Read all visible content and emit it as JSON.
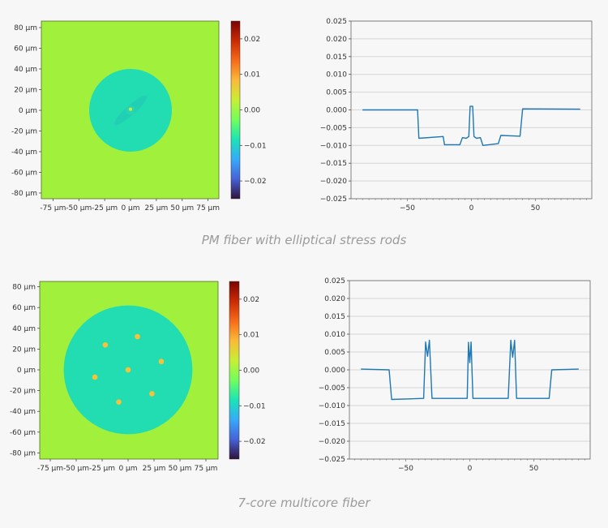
{
  "captions": [
    "PM fiber with elliptical stress rods",
    "7-core multicore fiber"
  ],
  "colors": {
    "page_bg": "#f7f7f7",
    "line": "#1f77b4",
    "background_value": "#a0f03c",
    "cladding": "#22dcb2",
    "core": "#f5c23c",
    "colormap": [
      "#30123b",
      "#4662d7",
      "#36aaf9",
      "#1ae4b6",
      "#72fe5e",
      "#c7ef34",
      "#faba39",
      "#f66b19",
      "#ca2a04",
      "#7a0403"
    ]
  },
  "chart_data": [
    {
      "type": "heatmap",
      "xticks": [
        "-75 µm",
        "-50 µm",
        "-25 µm",
        "0 µm",
        "25 µm",
        "50 µm",
        "75 µm"
      ],
      "xtick_values": [
        -75,
        -50,
        -25,
        0,
        25,
        50,
        75
      ],
      "yticks": [
        "80 µm",
        "60 µm",
        "40 µm",
        "20 µm",
        "0 µm",
        "-20 µm",
        "-40 µm",
        "-60 µm",
        "-80 µm"
      ],
      "ytick_values": [
        80,
        60,
        40,
        20,
        0,
        -20,
        -40,
        -60,
        -80
      ],
      "colorbar": {
        "range": [
          -0.025,
          0.025
        ],
        "ticks": [
          "0.02",
          "0.01",
          "0.00",
          "−0.01",
          "−0.02"
        ],
        "tick_values": [
          0.02,
          0.01,
          0,
          -0.01,
          -0.02
        ]
      },
      "features": {
        "cladding_radius_um": 40,
        "stress_rods": {
          "length_um": 42,
          "width_um": 9,
          "angle_deg": 42,
          "value": -0.01
        },
        "cores": [
          {
            "x": 0,
            "y": 1
          }
        ]
      }
    },
    {
      "type": "line",
      "xlim": [
        -94,
        94
      ],
      "ylim": [
        -0.025,
        0.025
      ],
      "xticks": [
        "−50",
        "0",
        "50"
      ],
      "xtick_values": [
        -50,
        0,
        50
      ],
      "yticks": [
        "0.025",
        "0.020",
        "0.015",
        "0.010",
        "0.005",
        "0.000",
        "−0.005",
        "−0.010",
        "−0.015",
        "−0.020",
        "−0.025"
      ],
      "ytick_values": [
        0.025,
        0.02,
        0.015,
        0.01,
        0.005,
        0,
        -0.005,
        -0.01,
        -0.015,
        -0.02,
        -0.025
      ],
      "grid": "horizontal",
      "x": [
        -85,
        -42,
        -41,
        -22,
        -21,
        -9,
        -7,
        -4,
        -2,
        -1,
        1,
        2,
        4,
        7,
        9,
        21,
        23,
        38,
        40,
        85
      ],
      "y": [
        0,
        0,
        -0.008,
        -0.0075,
        -0.0098,
        -0.0098,
        -0.0078,
        -0.008,
        -0.0075,
        0.001,
        0.001,
        -0.0075,
        -0.008,
        -0.0078,
        -0.01,
        -0.0095,
        -0.0072,
        -0.0074,
        0.0003,
        0.0002
      ]
    },
    {
      "type": "heatmap",
      "xticks": [
        "-75 µm",
        "-50 µm",
        "-25 µm",
        "0 µm",
        "25 µm",
        "50 µm",
        "75 µm"
      ],
      "xtick_values": [
        -75,
        -50,
        -25,
        0,
        25,
        50,
        75
      ],
      "yticks": [
        "80 µm",
        "60 µm",
        "40 µm",
        "20 µm",
        "0 µm",
        "-20 µm",
        "-40 µm",
        "-60 µm",
        "-80 µm"
      ],
      "ytick_values": [
        80,
        60,
        40,
        20,
        0,
        -20,
        -40,
        -60,
        -80
      ],
      "colorbar": {
        "range": [
          -0.025,
          0.025
        ],
        "ticks": [
          "0.02",
          "0.01",
          "0.00",
          "−0.01",
          "−0.02"
        ],
        "tick_values": [
          0.02,
          0.01,
          0,
          -0.01,
          -0.02
        ]
      },
      "features": {
        "cladding_radius_um": 62,
        "cores": [
          {
            "x": -22,
            "y": 24
          },
          {
            "x": 9,
            "y": 32
          },
          {
            "x": 32,
            "y": 8
          },
          {
            "x": 0,
            "y": 0
          },
          {
            "x": -32,
            "y": -7
          },
          {
            "x": -9,
            "y": -31
          },
          {
            "x": 23,
            "y": -23
          }
        ]
      }
    },
    {
      "type": "line",
      "xlim": [
        -94,
        94
      ],
      "ylim": [
        -0.025,
        0.025
      ],
      "xticks": [
        "−50",
        "0",
        "50"
      ],
      "xtick_values": [
        -50,
        0,
        50
      ],
      "yticks": [
        "0.025",
        "0.020",
        "0.015",
        "0.010",
        "0.005",
        "0.000",
        "−0.005",
        "−0.010",
        "−0.015",
        "−0.020",
        "−0.025"
      ],
      "ytick_values": [
        0.025,
        0.02,
        0.015,
        0.01,
        0.005,
        0,
        -0.005,
        -0.01,
        -0.015,
        -0.02,
        -0.025
      ],
      "grid": "horizontal",
      "x": [
        -85,
        -63,
        -61,
        -36,
        -34.5,
        -33,
        -31.5,
        -29.5,
        -2,
        -1,
        0,
        1,
        2.5,
        30,
        32,
        33.5,
        35,
        36.5,
        62,
        64,
        85
      ],
      "y": [
        0.0002,
        0,
        -0.0083,
        -0.008,
        0.0078,
        0.0038,
        0.0083,
        -0.008,
        -0.008,
        0.0077,
        0.002,
        0.0078,
        -0.008,
        -0.008,
        0.0083,
        0.0035,
        0.0083,
        -0.008,
        -0.008,
        0,
        0.0002
      ]
    }
  ]
}
